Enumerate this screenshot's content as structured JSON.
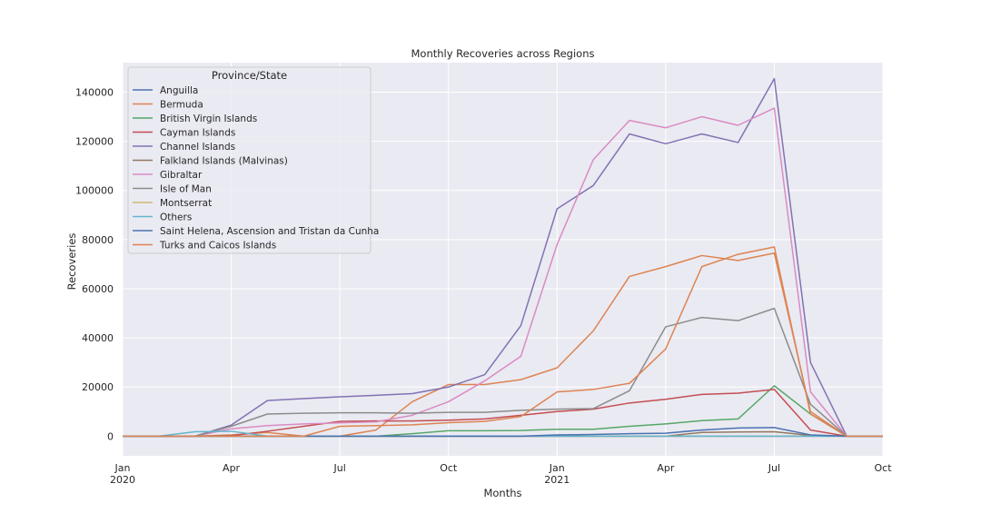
{
  "chart_data": {
    "type": "line",
    "title": "Monthly Recoveries across Regions",
    "xlabel": "Months",
    "ylabel": "Recoveries",
    "ylim": [
      -8000,
      152000
    ],
    "y_ticks": [
      0,
      20000,
      40000,
      60000,
      80000,
      100000,
      120000,
      140000
    ],
    "xlim": [
      "2020-01",
      "2021-10"
    ],
    "x_ticks": [
      {
        "month": "2020-01",
        "line1": "Jan",
        "line2": "2020"
      },
      {
        "month": "2020-04",
        "line1": "Apr",
        "line2": ""
      },
      {
        "month": "2020-07",
        "line1": "Jul",
        "line2": ""
      },
      {
        "month": "2020-10",
        "line1": "Oct",
        "line2": ""
      },
      {
        "month": "2021-01",
        "line1": "Jan",
        "line2": "2021"
      },
      {
        "month": "2021-04",
        "line1": "Apr",
        "line2": ""
      },
      {
        "month": "2021-07",
        "line1": "Jul",
        "line2": ""
      },
      {
        "month": "2021-10",
        "line1": "Oct",
        "line2": ""
      }
    ],
    "grid": true,
    "legend_title": "Province/State",
    "legend_position": "upper-left",
    "x": [
      "2020-01",
      "2020-02",
      "2020-03",
      "2020-04",
      "2020-05",
      "2020-06",
      "2020-07",
      "2020-08",
      "2020-09",
      "2020-10",
      "2020-11",
      "2020-12",
      "2021-01",
      "2021-02",
      "2021-03",
      "2021-04",
      "2021-05",
      "2021-06",
      "2021-07",
      "2021-08",
      "2021-09",
      "2021-10"
    ],
    "series": [
      {
        "name": "Anguilla",
        "color": "#4c72b0",
        "values": [
          0,
          0,
          0,
          0,
          0,
          0,
          0,
          0,
          0,
          0,
          0,
          0,
          0,
          0,
          0,
          0,
          0,
          0,
          0,
          0,
          0,
          0
        ]
      },
      {
        "name": "Bermuda",
        "color": "#dd8452",
        "values": [
          0,
          0,
          0,
          500,
          1500,
          0,
          0,
          2500,
          14000,
          21000,
          21000,
          23000,
          27800,
          42800,
          65000,
          69000,
          73500,
          71500,
          74500,
          10000,
          0,
          0
        ]
      },
      {
        "name": "British Virgin Islands",
        "color": "#55a868",
        "values": [
          0,
          0,
          0,
          0,
          0,
          0,
          0,
          0,
          1000,
          2200,
          2200,
          2300,
          2800,
          2800,
          4000,
          5000,
          6300,
          7000,
          20500,
          9000,
          0,
          0
        ]
      },
      {
        "name": "Cayman Islands",
        "color": "#c44e52",
        "values": [
          0,
          0,
          0,
          200,
          2000,
          4000,
          6000,
          6200,
          6200,
          6500,
          7000,
          8500,
          10000,
          11000,
          13500,
          15000,
          17000,
          17500,
          19000,
          2500,
          0,
          0
        ]
      },
      {
        "name": "Channel Islands",
        "color": "#8172b3",
        "values": [
          0,
          0,
          0,
          4500,
          14500,
          15300,
          16000,
          16600,
          17300,
          20000,
          25000,
          45000,
          92500,
          102000,
          123000,
          119000,
          123000,
          119500,
          145500,
          30000,
          0,
          0
        ]
      },
      {
        "name": "Falkland Islands (Malvinas)",
        "color": "#937860",
        "values": [
          0,
          0,
          0,
          0,
          0,
          0,
          0,
          0,
          0,
          0,
          0,
          0,
          0,
          0,
          0,
          0,
          1500,
          1700,
          1800,
          300,
          0,
          0
        ]
      },
      {
        "name": "Gibraltar",
        "color": "#da8bc3",
        "values": [
          0,
          0,
          0,
          3000,
          4300,
          5000,
          5400,
          5800,
          8500,
          14000,
          22500,
          32500,
          78000,
          112500,
          128500,
          125500,
          130000,
          126500,
          133500,
          18000,
          0,
          0
        ]
      },
      {
        "name": "Isle of Man",
        "color": "#8c8c8c",
        "values": [
          0,
          0,
          0,
          4000,
          9000,
          9300,
          9500,
          9500,
          9300,
          9700,
          9700,
          10500,
          11000,
          11200,
          18500,
          44500,
          48300,
          47000,
          52000,
          13000,
          0,
          0
        ]
      },
      {
        "name": "Montserrat",
        "color": "#ccb974",
        "values": [
          0,
          0,
          0,
          0,
          0,
          0,
          0,
          0,
          0,
          0,
          0,
          0,
          0,
          0,
          0,
          0,
          0,
          0,
          0,
          0,
          0,
          0
        ]
      },
      {
        "name": "Others",
        "color": "#64b5cd",
        "values": [
          0,
          0,
          1800,
          2000,
          0,
          0,
          0,
          0,
          0,
          0,
          0,
          0,
          0,
          0,
          0,
          0,
          0,
          0,
          0,
          0,
          0,
          0
        ]
      },
      {
        "name": "Saint Helena, Ascension and Tristan da Cunha",
        "color": "#4c72b0",
        "values": [
          0,
          0,
          0,
          0,
          0,
          0,
          0,
          0,
          0,
          0,
          0,
          0,
          500,
          700,
          1000,
          1200,
          2500,
          3300,
          3500,
          500,
          0,
          0
        ]
      },
      {
        "name": "Turks and Caicos Islands",
        "color": "#dd8452",
        "values": [
          0,
          0,
          0,
          0,
          0,
          0,
          4000,
          4300,
          4600,
          5500,
          6000,
          8000,
          18000,
          19000,
          21500,
          35500,
          69000,
          74000,
          77000,
          9000,
          0,
          0
        ]
      }
    ]
  }
}
